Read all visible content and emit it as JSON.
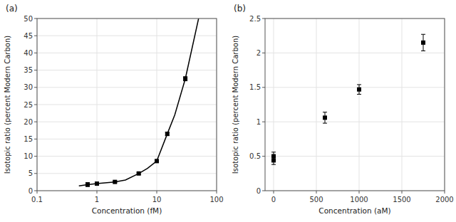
{
  "chart_data": [
    {
      "type": "scatter",
      "title": "(a)",
      "x_label": "Concentration (fM)",
      "y_label": "Isotopic ratio (percent Modern Carbon)",
      "log": "x",
      "grid": true,
      "xlim": [
        0.1,
        100
      ],
      "xticks": [
        0.1,
        1,
        10,
        100
      ],
      "ylim": [
        0,
        50
      ],
      "yticks": [
        0,
        5,
        10,
        15,
        20,
        25,
        30,
        35,
        40,
        45,
        50
      ],
      "series": [
        {
          "type": "line",
          "color": "black",
          "x": [
            0.5,
            0.7,
            1.0,
            2.0,
            3.0,
            5.0,
            7.0,
            10.0,
            15.0,
            20.0,
            30.0,
            50.0
          ],
          "values": [
            1.4,
            1.75,
            2.05,
            2.55,
            3.1,
            5.0,
            6.5,
            8.6,
            16.5,
            22.0,
            32.5,
            50.0
          ]
        },
        {
          "type": "scatter",
          "color": "black",
          "marker": "square",
          "x": [
            0.7,
            0.7,
            1.0,
            2.0,
            5.0,
            10.0,
            15.0,
            30.0
          ],
          "values": [
            1.7,
            1.85,
            2.05,
            2.55,
            5.0,
            8.6,
            16.5,
            32.5
          ],
          "errors": [
            0.15,
            0.15,
            0.15,
            0.2,
            0.3,
            0.4,
            0.5,
            0.6
          ]
        }
      ]
    },
    {
      "type": "scatter",
      "title": "(b)",
      "x_label": "Concentration (aM)",
      "y_label": "Isotopic ratio (percent Modern Carbon)",
      "grid": true,
      "xlim": [
        -100,
        2000
      ],
      "xticks": [
        0,
        500,
        1000,
        1500,
        2000
      ],
      "ylim": [
        0,
        2.5
      ],
      "yticks": [
        0,
        0.5,
        1.0,
        1.5,
        2.0,
        2.5
      ],
      "series": [
        {
          "type": "scatter",
          "color": "black",
          "marker": "square",
          "x": [
            0,
            0,
            600,
            1000,
            1750
          ],
          "values": [
            0.44,
            0.5,
            1.06,
            1.47,
            2.15
          ],
          "errors": [
            0.06,
            0.06,
            0.08,
            0.07,
            0.12
          ]
        }
      ]
    }
  ]
}
